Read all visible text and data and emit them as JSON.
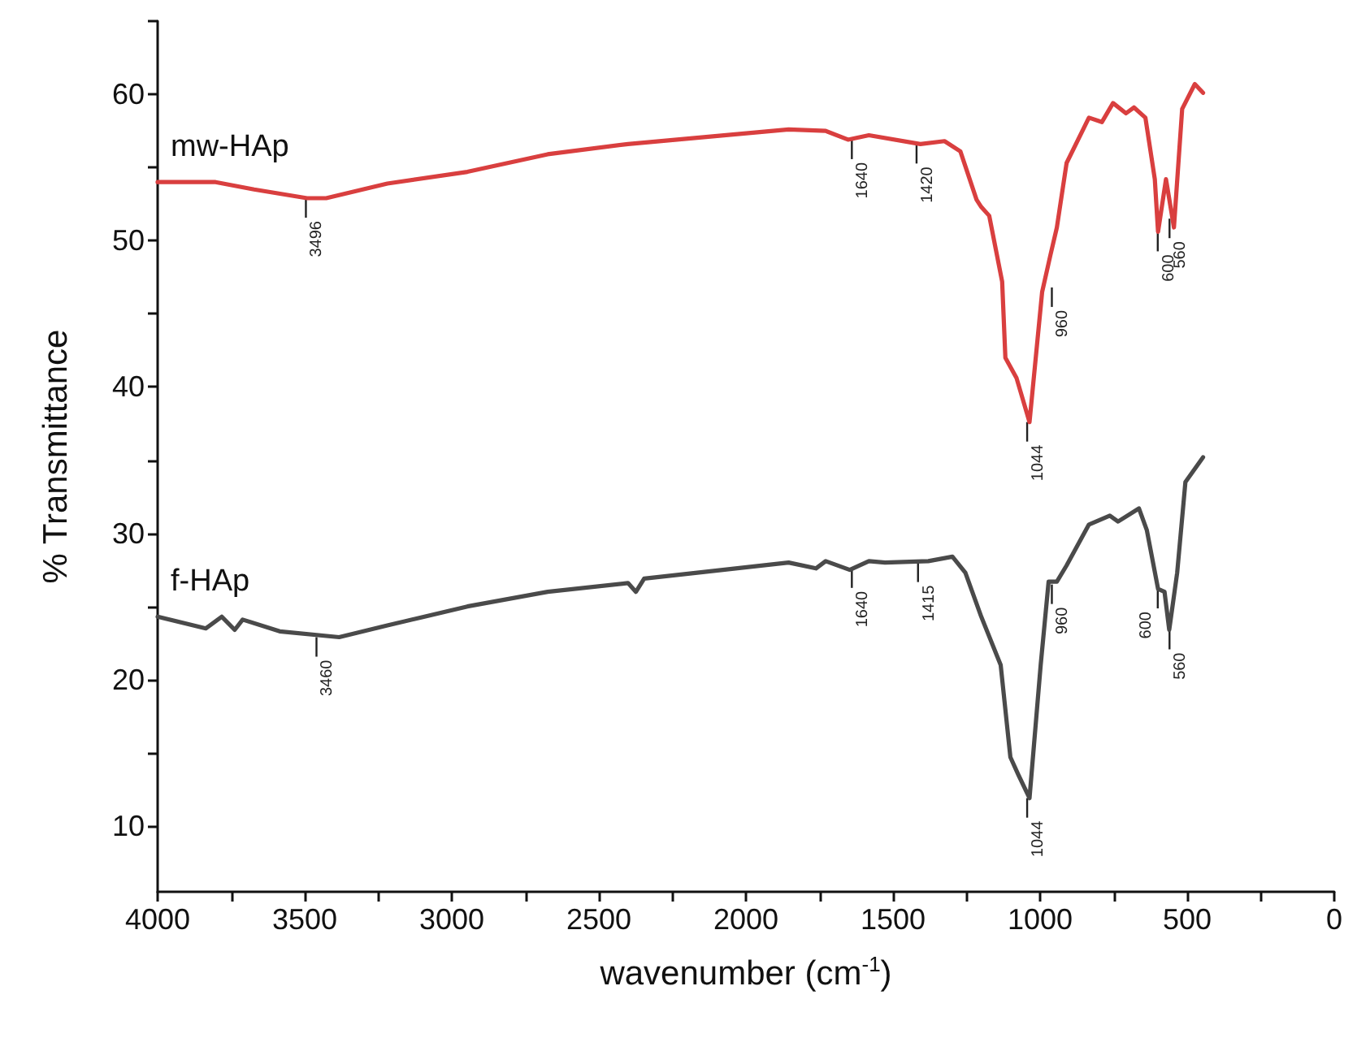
{
  "chart_data": {
    "type": "line",
    "xlabel": "wavenumber (cm$^{-1}$)",
    "ylabel": "% Transmittance",
    "xlim": [
      4000,
      0
    ],
    "ylim": [
      5.5,
      65
    ],
    "xticks": [
      4000,
      {
        "value": 3750,
        "label": null
      },
      3500,
      {
        "value": 3250,
        "label": null
      },
      3000,
      {
        "value": 2750,
        "label": null
      },
      2500,
      {
        "value": 2250,
        "label": null
      },
      2000,
      {
        "value": 1750,
        "label": null
      },
      1500,
      {
        "value": 1250,
        "label": null
      },
      1000,
      {
        "value": 750,
        "label": null
      },
      500,
      {
        "value": 250,
        "label": null
      },
      0
    ],
    "yticks": [
      {
        "value": 10,
        "label": "10"
      },
      {
        "value": 15,
        "label": null
      },
      20,
      {
        "value": 25,
        "label": null
      },
      30,
      {
        "value": 35,
        "label": null
      },
      40,
      {
        "value": 45,
        "label": null
      },
      50,
      {
        "value": 55,
        "label": null
      },
      60,
      {
        "value": 65,
        "label": null
      }
    ],
    "grid": false,
    "legend": false,
    "marker": "none",
    "line_style": "solid",
    "series": [
      {
        "name": "mw-HAp",
        "color": "#d93f3f",
        "x": [
          4000,
          3803,
          3672,
          3492,
          3427,
          3219,
          2947,
          2674,
          2401,
          2128,
          1855,
          1729,
          1653,
          1582,
          1407,
          1325,
          1271,
          1216,
          1200,
          1173,
          1129,
          1118,
          1080,
          1036,
          993,
          965,
          943,
          910,
          834,
          790,
          752,
          708,
          681,
          642,
          610,
          599,
          572,
          545,
          517,
          474,
          446
        ],
        "values": [
          54.0,
          54.0,
          53.5,
          52.9,
          52.9,
          53.9,
          54.7,
          55.9,
          56.6,
          57.1,
          57.6,
          57.5,
          56.9,
          57.2,
          56.6,
          56.8,
          56.1,
          52.8,
          52.3,
          51.7,
          47.2,
          42.0,
          40.6,
          37.6,
          46.5,
          49.0,
          50.9,
          55.3,
          58.4,
          58.1,
          59.4,
          58.7,
          59.1,
          58.4,
          54.2,
          50.6,
          54.2,
          50.9,
          59.0,
          60.7,
          60.1
        ]
      },
      {
        "name": "f-HAp",
        "color": "#4a4a4a",
        "x": [
          4000,
          3836,
          3782,
          3738,
          3711,
          3585,
          3383,
          3219,
          2947,
          2674,
          2401,
          2374,
          2346,
          2035,
          1855,
          1762,
          1729,
          1647,
          1582,
          1527,
          1380,
          1298,
          1254,
          1200,
          1134,
          1101,
          1074,
          1036,
          998,
          971,
          943,
          910,
          834,
          763,
          735,
          664,
          637,
          599,
          577,
          561,
          534,
          506,
          446
        ],
        "values": [
          24.3,
          23.5,
          24.3,
          23.4,
          24.1,
          23.3,
          22.9,
          23.7,
          25.0,
          26.0,
          26.6,
          26.0,
          26.9,
          27.6,
          28.0,
          27.6,
          28.1,
          27.5,
          28.1,
          28.0,
          28.1,
          28.4,
          27.3,
          24.3,
          21.0,
          14.7,
          13.5,
          11.9,
          21.0,
          26.7,
          26.7,
          27.8,
          30.6,
          31.2,
          30.8,
          31.7,
          30.2,
          26.2,
          26.0,
          23.4,
          27.3,
          33.5,
          35.2
        ]
      }
    ],
    "annotations": [
      {
        "text": "3496",
        "x": 3496,
        "y": 52.9
      },
      {
        "text": "1640",
        "x": 1640,
        "y": 56.9
      },
      {
        "text": "1420",
        "x": 1420,
        "y": 56.6
      },
      {
        "text": "1044",
        "x": 1044,
        "y": 37.6
      },
      {
        "text": "960",
        "x": 960,
        "y": 46.8
      },
      {
        "text": "600",
        "x": 600,
        "y": 50.6
      },
      {
        "text": "560",
        "x": 560,
        "y": 51.5
      },
      {
        "text": "3460",
        "x": 3460,
        "y": 22.9
      },
      {
        "text": "1640",
        "x": 1640,
        "y": 27.6
      },
      {
        "text": "1415",
        "x": 1415,
        "y": 28.0
      },
      {
        "text": "1044",
        "x": 1044,
        "y": 11.9
      },
      {
        "text": "960",
        "x": 960,
        "y": 26.5
      },
      {
        "text": "600",
        "x": 600,
        "y": 26.2
      },
      {
        "text": "560",
        "x": 560,
        "y": 23.4
      }
    ]
  }
}
